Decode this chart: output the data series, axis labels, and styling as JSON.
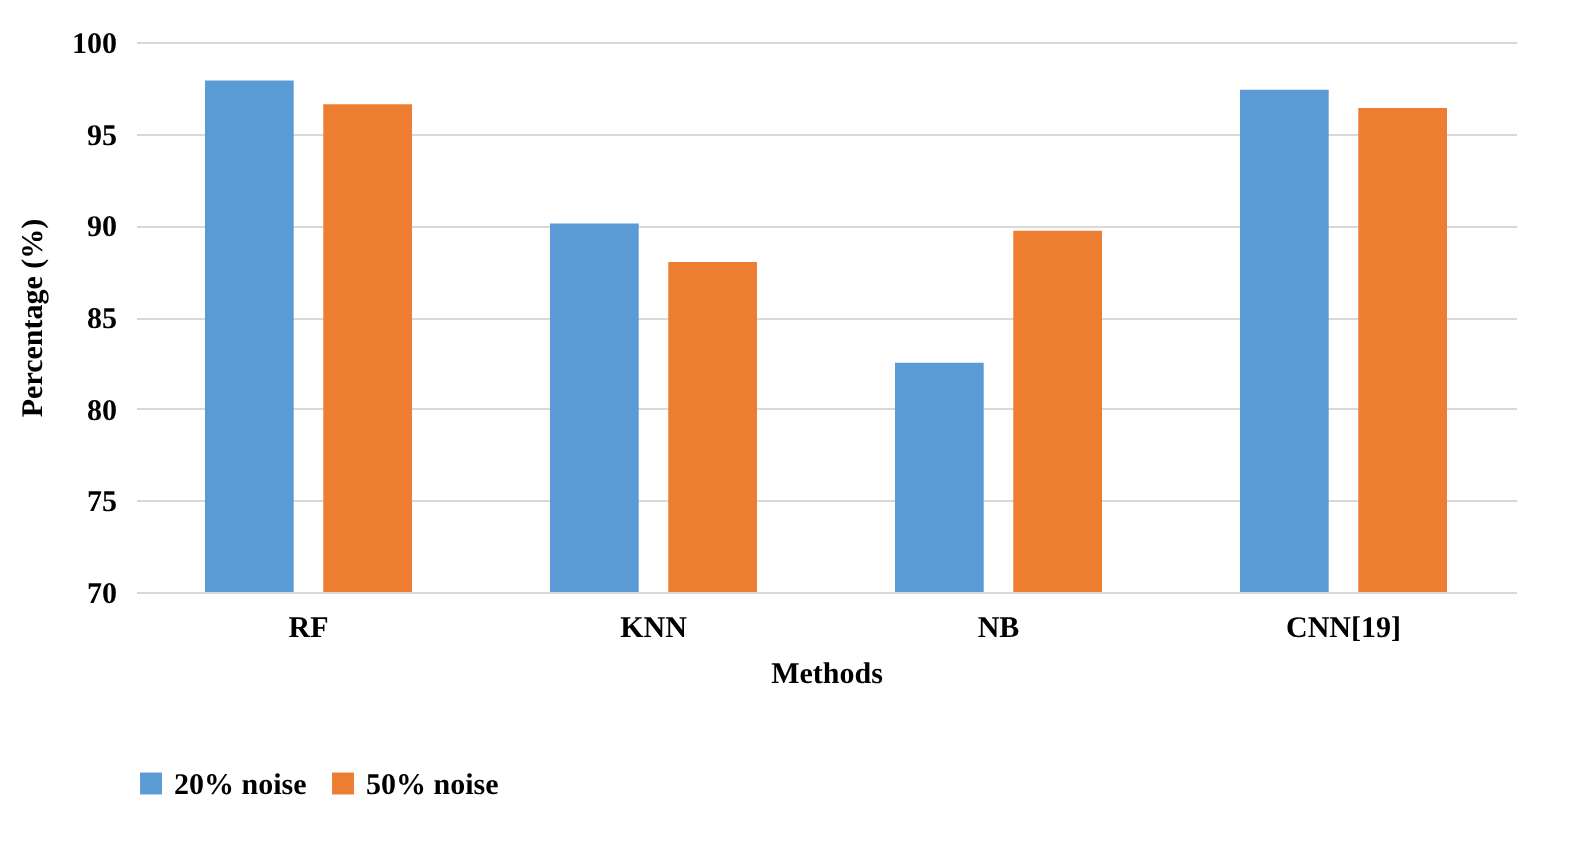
{
  "chart_data": {
    "type": "bar",
    "xlabel": "Methods",
    "ylabel": "Percentage (%)",
    "categories": [
      "RF",
      "KNN",
      "NB",
      "CNN[19]"
    ],
    "series": [
      {
        "name": "20% noise",
        "color": "#5b9bd5",
        "values": [
          97.9,
          90.1,
          82.5,
          97.4
        ]
      },
      {
        "name": "50% noise",
        "color": "#ed7d31",
        "values": [
          96.6,
          88.0,
          89.7,
          96.4
        ]
      }
    ],
    "ylim": [
      70,
      100
    ],
    "yticks": [
      70,
      75,
      80,
      85,
      90,
      95,
      100
    ],
    "grid": "y",
    "legend": "bottom"
  }
}
